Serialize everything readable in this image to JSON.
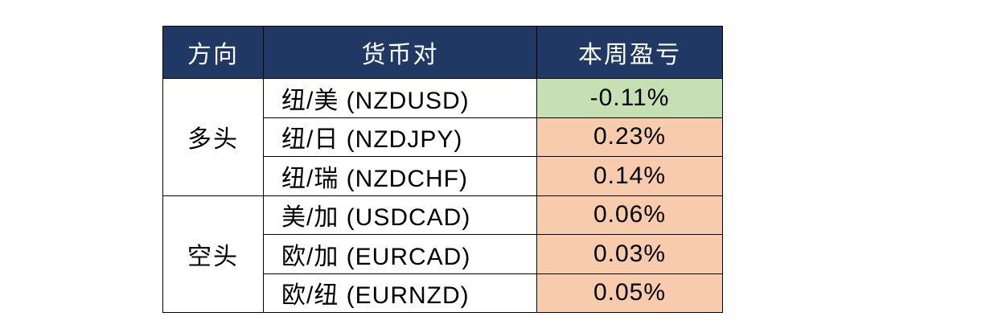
{
  "table": {
    "header": [
      "方向",
      "货币对",
      "本周盈亏"
    ],
    "groups": [
      {
        "direction": "多头",
        "rows": [
          {
            "pair": "纽/美 (NZDUSD)",
            "pnl": "-0.11%",
            "color": "#c6e0b4"
          },
          {
            "pair": "纽/日 (NZDJPY)",
            "pnl": "0.23%",
            "color": "#f8cbad"
          },
          {
            "pair": "纽/瑞 (NZDCHF)",
            "pnl": "0.14%",
            "color": "#f8cbad"
          }
        ]
      },
      {
        "direction": "空头",
        "rows": [
          {
            "pair": "美/加 (USDCAD)",
            "pnl": "0.06%",
            "color": "#f8cbad"
          },
          {
            "pair": "欧/加 (EURCAD)",
            "pnl": "0.03%",
            "color": "#f8cbad"
          },
          {
            "pair": "欧/纽 (EURNZD)",
            "pnl": "0.05%",
            "color": "#f8cbad"
          }
        ]
      }
    ]
  }
}
